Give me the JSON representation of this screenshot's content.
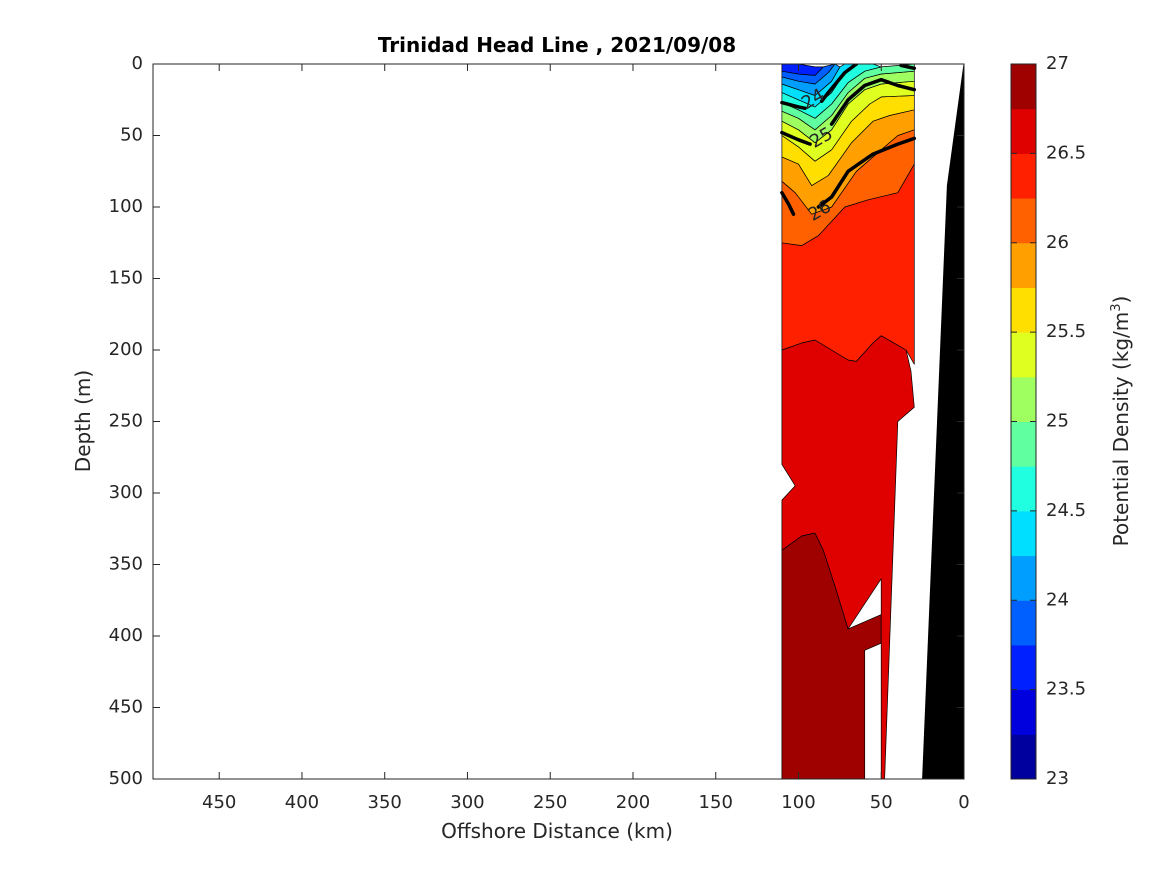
{
  "chart_data": {
    "type": "heatmap",
    "subtype": "filled-contour-section",
    "title": "Trinidad Head Line , 2021/09/08",
    "xlabel": "Offshore Distance (km)",
    "ylabel": "Depth (m)",
    "xlim": [
      490,
      0
    ],
    "x_reversed": true,
    "xticks": [
      450,
      400,
      350,
      300,
      250,
      200,
      150,
      100,
      50,
      0
    ],
    "ylim": [
      0,
      500
    ],
    "y_reversed": true,
    "yticks": [
      0,
      50,
      100,
      150,
      200,
      250,
      300,
      350,
      400,
      450,
      500
    ],
    "colorbar": {
      "label": "Potential Density (kg/m",
      "label_superscript": "3",
      "label_suffix": ")",
      "min": 23,
      "max": 27,
      "step": 0.25,
      "ticks": [
        23,
        23.5,
        24,
        24.5,
        25,
        25.5,
        26,
        26.5,
        27
      ],
      "colormap": "jet"
    },
    "contour_labels": [
      {
        "text": "24",
        "value": 24,
        "x": 91,
        "y": 25
      },
      {
        "text": "25",
        "value": 25,
        "x": 86,
        "y": 52
      },
      {
        "text": "26",
        "value": 26,
        "x": 87,
        "y": 103
      }
    ],
    "bathymetry": {
      "color": "#000000",
      "distance_km": [
        0,
        10,
        25,
        25,
        0
      ],
      "depth_m": [
        0,
        85,
        500,
        500,
        500
      ]
    },
    "regions": [
      {
        "value": 26.875,
        "distance_km": [
          110,
          110,
          98,
          90,
          85,
          78,
          70,
          50,
          50,
          60,
          60
        ],
        "depth_m": [
          500,
          340,
          330,
          328,
          340,
          365,
          395,
          385,
          405,
          410,
          500
        ]
      },
      {
        "value": 26.625,
        "distance_km": [
          110,
          98,
          90,
          70,
          65,
          55,
          50,
          50,
          35,
          32,
          30,
          30,
          40,
          40,
          50,
          50,
          70,
          78,
          85,
          90,
          98,
          110,
          110,
          102,
          110,
          110
        ],
        "depth_m": [
          200,
          195,
          193,
          207,
          208,
          195,
          190,
          190,
          200,
          215,
          240,
          240,
          250,
          250,
          565,
          360,
          395,
          365,
          340,
          328,
          330,
          340,
          305,
          295,
          280,
          200
        ]
      },
      {
        "value": 26.375,
        "distance_km": [
          110,
          98,
          88,
          72,
          58,
          40,
          30,
          30,
          35,
          50,
          55,
          65,
          70,
          90,
          98,
          110
        ],
        "depth_m": [
          125,
          127,
          120,
          100,
          95,
          90,
          70,
          210,
          200,
          190,
          195,
          208,
          207,
          193,
          195,
          200
        ]
      },
      {
        "value": 26.125,
        "distance_km": [
          110,
          102,
          92,
          80,
          65,
          50,
          40,
          30,
          30,
          40,
          58,
          72,
          88,
          98,
          110
        ],
        "depth_m": [
          82,
          90,
          105,
          100,
          75,
          60,
          50,
          46,
          70,
          90,
          95,
          100,
          120,
          127,
          125
        ]
      },
      {
        "value": 25.875,
        "distance_km": [
          110,
          100,
          92,
          82,
          68,
          55,
          45,
          30,
          30,
          40,
          50,
          65,
          80,
          92,
          102,
          110
        ],
        "depth_m": [
          65,
          70,
          85,
          78,
          55,
          40,
          36,
          32,
          46,
          50,
          60,
          75,
          100,
          105,
          90,
          82
        ]
      },
      {
        "value": 25.625,
        "distance_km": [
          110,
          100,
          90,
          80,
          68,
          57,
          50,
          30,
          30,
          45,
          55,
          68,
          82,
          92,
          100,
          110
        ],
        "depth_m": [
          50,
          58,
          68,
          60,
          40,
          28,
          23,
          22,
          32,
          36,
          40,
          55,
          78,
          85,
          70,
          65
        ]
      },
      {
        "value": 25.375,
        "distance_km": [
          110,
          100,
          90,
          80,
          70,
          60,
          50,
          30,
          30,
          50,
          57,
          68,
          80,
          90,
          100,
          110
        ],
        "depth_m": [
          40,
          46,
          55,
          46,
          28,
          18,
          14,
          12,
          22,
          23,
          28,
          40,
          60,
          68,
          58,
          50
        ]
      },
      {
        "value": 25.125,
        "distance_km": [
          110,
          100,
          90,
          80,
          70,
          60,
          50,
          30,
          30,
          50,
          60,
          70,
          80,
          90,
          100,
          110
        ],
        "depth_m": [
          33,
          38,
          46,
          36,
          20,
          10,
          7,
          5,
          12,
          14,
          18,
          28,
          46,
          55,
          46,
          40
        ]
      },
      {
        "value": 24.875,
        "distance_km": [
          110,
          100,
          90,
          80,
          70,
          60,
          50,
          30,
          30,
          50,
          60,
          70,
          80,
          90,
          100,
          110
        ],
        "depth_m": [
          27,
          32,
          38,
          28,
          13,
          5,
          2,
          0,
          5,
          7,
          10,
          20,
          36,
          46,
          38,
          33
        ]
      },
      {
        "value": 24.625,
        "distance_km": [
          110,
          100,
          90,
          80,
          72,
          65,
          55,
          50,
          60,
          70,
          80,
          90,
          100,
          110
        ],
        "depth_m": [
          20,
          25,
          30,
          20,
          6,
          0,
          0,
          2,
          5,
          13,
          28,
          38,
          32,
          27
        ]
      },
      {
        "value": 24.375,
        "distance_km": [
          110,
          100,
          90,
          80,
          75,
          72,
          65,
          72,
          80,
          90,
          100,
          110
        ],
        "depth_m": [
          14,
          18,
          22,
          12,
          2,
          0,
          0,
          6,
          20,
          30,
          25,
          20
        ]
      },
      {
        "value": 24.125,
        "distance_km": [
          110,
          100,
          90,
          82,
          78,
          75,
          80,
          90,
          100,
          110
        ],
        "depth_m": [
          9,
          12,
          14,
          6,
          0,
          2,
          12,
          22,
          18,
          14
        ]
      },
      {
        "value": 23.875,
        "distance_km": [
          110,
          100,
          90,
          85,
          78,
          82,
          90,
          100,
          110
        ],
        "depth_m": [
          5,
          7,
          8,
          2,
          0,
          6,
          14,
          12,
          9
        ]
      },
      {
        "value": 23.625,
        "distance_km": [
          110,
          100,
          90,
          85,
          90,
          100,
          110
        ],
        "depth_m": [
          0,
          0,
          2,
          2,
          8,
          7,
          5
        ]
      }
    ],
    "thick_contours": [
      {
        "value": 24,
        "distance_km": [
          110,
          100,
          96
        ],
        "depth_m": [
          27,
          30,
          31
        ]
      },
      {
        "value": 24,
        "distance_km": [
          86,
          82,
          72,
          65
        ],
        "depth_m": [
          26,
          20,
          6,
          0
        ]
      },
      {
        "value": 24,
        "distance_km": [
          38,
          30
        ],
        "depth_m": [
          1,
          3
        ]
      },
      {
        "value": 25,
        "distance_km": [
          110,
          100,
          93
        ],
        "depth_m": [
          48,
          53,
          56
        ]
      },
      {
        "value": 25,
        "distance_km": [
          80,
          70,
          60,
          50,
          40,
          30
        ],
        "depth_m": [
          42,
          25,
          15,
          11,
          15,
          18
        ]
      },
      {
        "value": 26,
        "distance_km": [
          110,
          106,
          103
        ],
        "depth_m": [
          90,
          98,
          105
        ]
      },
      {
        "value": 26,
        "distance_km": [
          88,
          80,
          70,
          55,
          40,
          30
        ],
        "depth_m": [
          100,
          93,
          75,
          63,
          56,
          52
        ]
      }
    ]
  }
}
